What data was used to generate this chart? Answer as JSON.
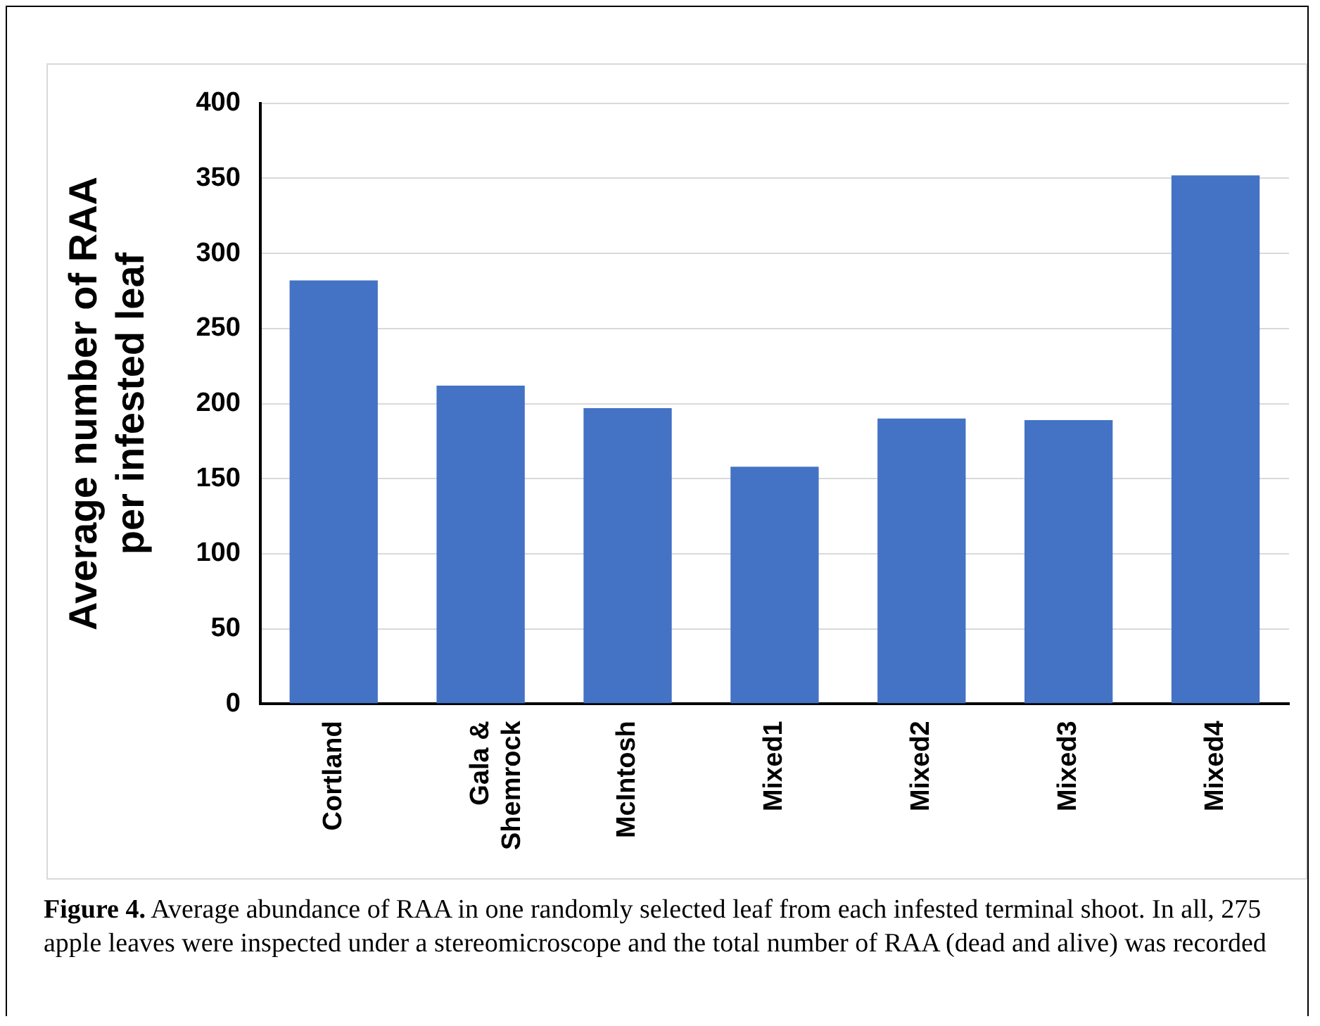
{
  "chart_data": {
    "type": "bar",
    "ylabel": "Average number of RAA per infested leaf",
    "categories": [
      "Cortland",
      "Gala & Shemrock",
      "McIntosh",
      "Mixed1",
      "Mixed2",
      "Mixed3",
      "Mixed4"
    ],
    "values": [
      282,
      212,
      197,
      158,
      190,
      189,
      352
    ],
    "color": "#4472c4",
    "ylim": [
      0,
      400
    ],
    "yticks": [
      0,
      50,
      100,
      150,
      200,
      250,
      300,
      350,
      400
    ],
    "grid": "y",
    "legend": false,
    "annotations": [
      "Figure 4. Average abundance of RAA in one randomly selected leaf from each infested terminal shoot. In all, 275 apple leaves were inspected under a stereomicroscope and the total number of RAA (dead and alive) was recorded"
    ]
  }
}
